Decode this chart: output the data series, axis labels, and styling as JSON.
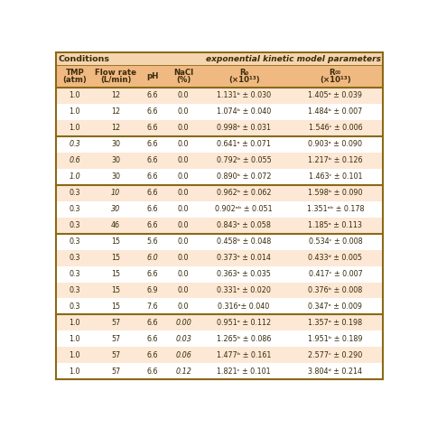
{
  "title_left": "Conditions",
  "title_right": "exponential kinetic model parameters",
  "col_headers": [
    [
      "TMP",
      "(atm)"
    ],
    [
      "Flow rate",
      "(L/min)"
    ],
    [
      "pH",
      ""
    ],
    [
      "NaCl",
      "(%)"
    ],
    [
      "R₀",
      "(×10¹³)"
    ],
    [
      "R∞",
      "(×10¹³)"
    ]
  ],
  "rows": [
    [
      "1.0",
      "12",
      "6.6",
      "0.0",
      "1.131ᵇ ± 0.030",
      "1.405ᵃ ± 0.039"
    ],
    [
      "1.0",
      "12",
      "6.6",
      "0.0",
      "1.074ᵇ ± 0.040",
      "1.484ᵇ ± 0.007"
    ],
    [
      "1.0",
      "12",
      "6.6",
      "0.0",
      "0.998ᵃ ± 0.031",
      "1.546ᶜ ± 0.006"
    ],
    [
      "0.3",
      "30",
      "6.6",
      "0.0",
      "0.641ᵃ ± 0.071",
      "0.903ᵃ ± 0.090"
    ],
    [
      "0.6",
      "30",
      "6.6",
      "0.0",
      "0.792ᵇ ± 0.055",
      "1.217ᵇ ± 0.126"
    ],
    [
      "1.0",
      "30",
      "6.6",
      "0.0",
      "0.890ᵇ ± 0.072",
      "1.463ᶜ ± 0.101"
    ],
    [
      "0.3",
      "10",
      "6.6",
      "0.0",
      "0.962ᵇ ± 0.062",
      "1.598ᵇ ± 0.090"
    ],
    [
      "0.3",
      "30",
      "6.6",
      "0.0",
      "0.902ᵃᵇ ± 0.051",
      "1.351ᵃᵇ ± 0.178"
    ],
    [
      "0.3",
      "46",
      "6.6",
      "0.0",
      "0.843ᵃ ± 0.058",
      "1.185ᵃ ± 0.113"
    ],
    [
      "0.3",
      "15",
      "5.6",
      "0.0",
      "0.458ᵇ ± 0.048",
      "0.534ᶜ ± 0.008"
    ],
    [
      "0.3",
      "15",
      "6.0",
      "0.0",
      "0.373ᵃ ± 0.014",
      "0.433ᵈ ± 0.005"
    ],
    [
      "0.3",
      "15",
      "6.6",
      "0.0",
      "0.363ᵃ ± 0.035",
      "0.417ᶜ ± 0.007"
    ],
    [
      "0.3",
      "15",
      "6.9",
      "0.0",
      "0.331ᵃ ± 0.020",
      "0.376ᵇ ± 0.008"
    ],
    [
      "0.3",
      "15",
      "7.6",
      "0.0",
      "0.316ᵃ± 0.040",
      "0.347ᵃ ± 0.009"
    ],
    [
      "1.0",
      "57",
      "6.6",
      "0.00",
      "0.951ᵃ ± 0.112",
      "1.357ᵃ ± 0.198"
    ],
    [
      "1.0",
      "57",
      "6.6",
      "0.03",
      "1.265ᵇ ± 0.086",
      "1.951ᵇ ± 0.189"
    ],
    [
      "1.0",
      "57",
      "6.6",
      "0.06",
      "1.477ᵇ ± 0.161",
      "2.577ᶜ ± 0.290"
    ],
    [
      "1.0",
      "57",
      "6.6",
      "0.12",
      "1.821ᶜ ± 0.101",
      "3.804ᵈ ± 0.214"
    ]
  ],
  "italic_col0": [
    3,
    4,
    5
  ],
  "italic_col1": [
    6,
    7
  ],
  "italic_col3": [
    14,
    15,
    16,
    17
  ],
  "italic_col2_ph": [
    10
  ],
  "group_separators_after": [
    2,
    5,
    8,
    13
  ],
  "bg_peach": "#fce8d5",
  "bg_white": "#ffffff",
  "header_bg": "#f0b982",
  "title_bg": "#f5d5b0",
  "border_dark": "#8B6914",
  "border_light": "#c8a070",
  "text_color": "#3a2a0a"
}
